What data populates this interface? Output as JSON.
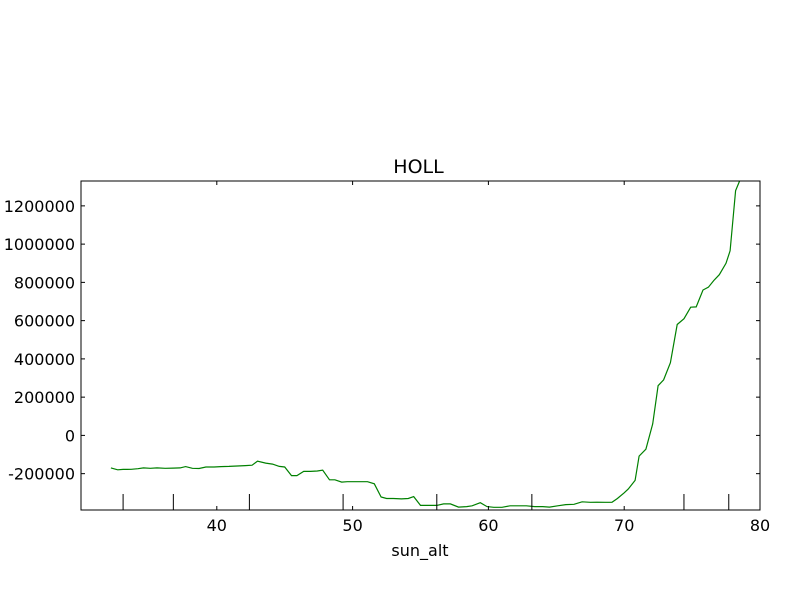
{
  "chart_data": {
    "type": "line",
    "title": "HOLL",
    "xlabel": "sun_alt",
    "ylabel": "",
    "xlim": [
      30,
      80
    ],
    "ylim": [
      -390000,
      1330000
    ],
    "x_ticks": [
      40,
      50,
      60,
      70,
      80
    ],
    "x_tick_labels": [
      "40",
      "50",
      "60",
      "70",
      "80"
    ],
    "y_ticks": [
      -200000,
      0,
      200000,
      400000,
      600000,
      800000,
      1000000,
      1200000
    ],
    "y_tick_labels": [
      "-200000",
      "0",
      "200000",
      "400000",
      "600000",
      "800000",
      "1000000",
      "1200000"
    ],
    "grid": false,
    "line_color": "#008000",
    "event_markers_x": [
      33.1,
      36.8,
      42.4,
      49.3,
      56.2,
      63.2,
      74.4,
      77.7
    ],
    "series": [
      {
        "x": [
          32.2,
          32.7,
          33.1,
          33.7,
          34.2,
          34.6,
          35.1,
          35.6,
          36.2,
          36.8,
          37.3,
          37.7,
          38.2,
          38.7,
          39.2,
          39.8,
          40.3,
          40.9,
          41.5,
          42.1,
          42.6,
          43.0,
          43.6,
          44.1,
          44.6,
          45.0,
          45.5,
          45.9,
          46.4,
          46.9,
          47.4,
          47.8,
          48.3,
          48.7,
          49.2,
          49.6,
          50.1,
          50.6,
          51.1,
          51.6,
          52.1,
          52.5,
          53.0,
          53.6,
          54.1,
          54.5,
          55.0,
          55.6,
          56.2,
          56.7,
          57.2,
          57.8,
          58.4,
          58.8,
          59.4,
          59.9,
          60.4,
          61.0,
          61.6,
          62.2,
          62.8,
          63.4,
          64.0,
          64.5,
          65.1,
          65.7,
          66.3,
          66.9,
          67.5,
          68.0,
          68.6,
          69.1,
          69.5,
          70.0,
          70.3,
          70.8,
          71.1,
          71.6,
          72.1,
          72.5,
          72.9,
          73.4,
          73.9,
          74.4,
          74.9,
          75.3,
          75.8,
          76.2,
          76.6,
          77.0,
          77.5,
          77.8,
          78.2,
          78.5
        ],
        "y": [
          -170000,
          -180000,
          -178000,
          -177000,
          -174000,
          -170000,
          -172000,
          -170000,
          -172000,
          -171000,
          -170000,
          -163000,
          -172000,
          -173000,
          -165000,
          -165000,
          -163000,
          -162000,
          -160000,
          -158000,
          -156000,
          -135000,
          -145000,
          -150000,
          -162000,
          -165000,
          -210000,
          -210000,
          -188000,
          -188000,
          -186000,
          -182000,
          -232000,
          -232000,
          -244000,
          -242000,
          -242000,
          -242000,
          -242000,
          -253000,
          -322000,
          -330000,
          -330000,
          -332000,
          -330000,
          -320000,
          -366000,
          -366000,
          -366000,
          -358000,
          -358000,
          -375000,
          -372000,
          -368000,
          -352000,
          -372000,
          -376000,
          -376000,
          -368000,
          -368000,
          -368000,
          -372000,
          -372000,
          -375000,
          -368000,
          -362000,
          -360000,
          -347000,
          -350000,
          -349000,
          -350000,
          -350000,
          -330000,
          -300000,
          -280000,
          -235000,
          -108000,
          -72000,
          60000,
          260000,
          290000,
          380000,
          580000,
          610000,
          670000,
          672000,
          760000,
          775000,
          810000,
          840000,
          900000,
          965000,
          1280000,
          1330000
        ]
      }
    ]
  }
}
